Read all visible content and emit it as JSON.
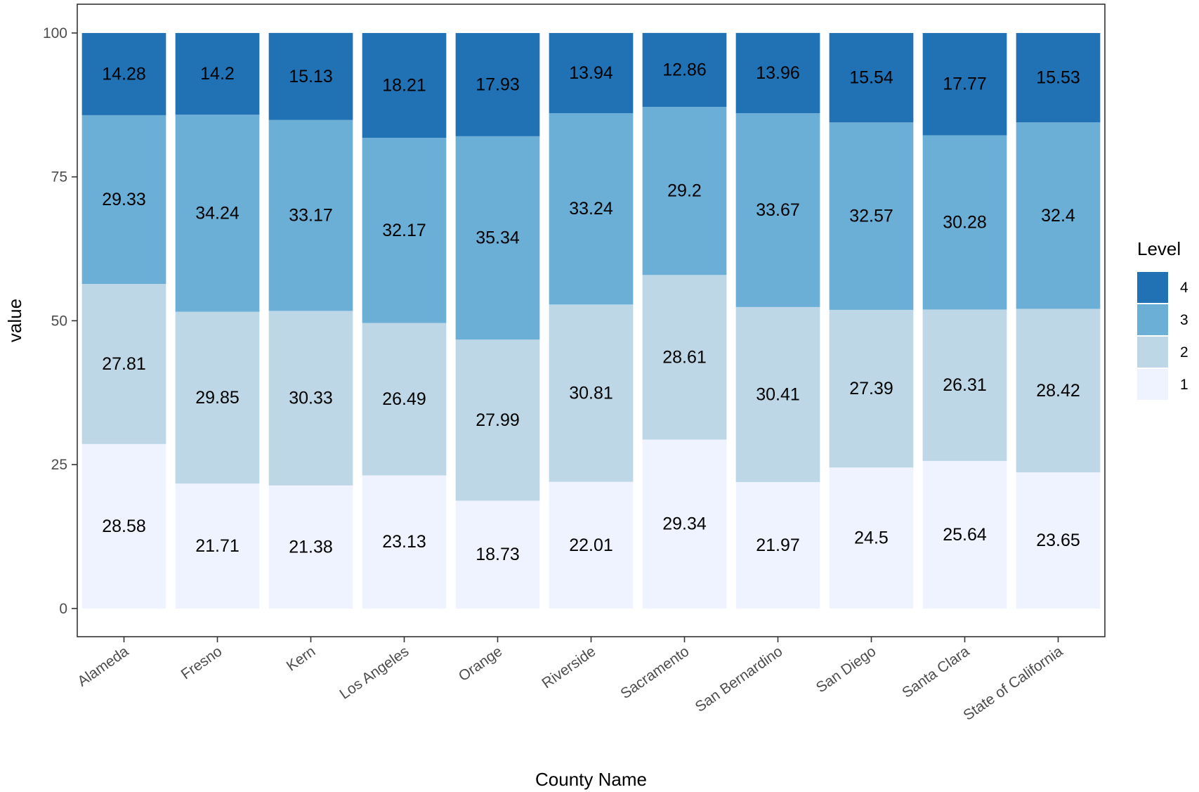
{
  "chart_data": {
    "type": "bar",
    "stacked": true,
    "categories": [
      "Alameda",
      "Fresno",
      "Kern",
      "Los Angeles",
      "Orange",
      "Riverside",
      "Sacramento",
      "San Bernardino",
      "San Diego",
      "Santa Clara",
      "State of California"
    ],
    "series": [
      {
        "name": "1",
        "color": "#eff3ff",
        "values": [
          28.58,
          21.71,
          21.38,
          23.13,
          18.73,
          22.01,
          29.34,
          21.97,
          24.5,
          25.64,
          23.65
        ]
      },
      {
        "name": "2",
        "color": "#bdd7e7",
        "values": [
          27.81,
          29.85,
          30.33,
          26.49,
          27.99,
          30.81,
          28.61,
          30.41,
          27.39,
          26.31,
          28.42
        ]
      },
      {
        "name": "3",
        "color": "#6baed6",
        "values": [
          29.33,
          34.24,
          33.17,
          32.17,
          35.34,
          33.24,
          29.2,
          33.67,
          32.57,
          30.28,
          32.4
        ]
      },
      {
        "name": "4",
        "color": "#2171b5",
        "values": [
          14.28,
          14.2,
          15.13,
          18.21,
          17.93,
          13.94,
          12.86,
          13.96,
          15.54,
          17.77,
          15.53
        ]
      }
    ],
    "xlabel": "County Name",
    "ylabel": "value",
    "ylim": [
      -4.9,
      105
    ],
    "yticks": [
      0,
      25,
      50,
      75,
      100
    ],
    "legend": {
      "title": "Level",
      "placement": "right",
      "order": [
        "4",
        "3",
        "2",
        "1"
      ]
    },
    "grid": false,
    "panel_border": true
  }
}
